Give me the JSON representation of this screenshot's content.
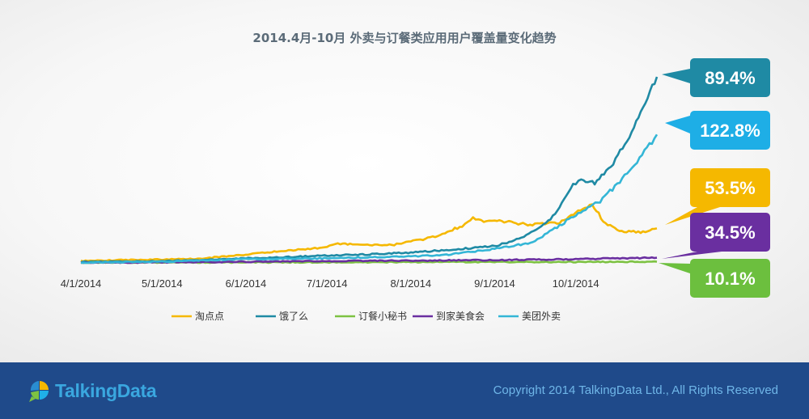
{
  "colors": {
    "taodiandian": "#f5b800",
    "eleme": "#1f8aa4",
    "dingcan": "#7dc242",
    "daojia": "#6a2fa0",
    "meituan": "#34b6d6",
    "callout_eleme": "#1f8aa4",
    "callout_meituan": "#1eaee6",
    "callout_taodiandian": "#f5b800",
    "callout_daojia": "#6a2fa0",
    "callout_dingcan": "#6cbf3e",
    "footer": "#1f4a8a"
  },
  "chart_data": {
    "type": "line",
    "title": "2014.4月-10月 外卖与订餐类应用用户覆盖量变化趋势",
    "x_ticks": [
      "4/1/2014",
      "5/1/2014",
      "6/1/2014",
      "7/1/2014",
      "8/1/2014",
      "9/1/2014",
      "10/1/2014"
    ],
    "x_range": [
      "2014-04-01",
      "2014-10-31"
    ],
    "y_range": [
      0,
      100
    ],
    "grid": false,
    "legend_position": "bottom",
    "series": [
      {
        "name": "淘点点",
        "color_key": "taodiandian",
        "callout": "53.5%",
        "points": [
          [
            "2014-04-01",
            1.0
          ],
          [
            "2014-04-15",
            1.5
          ],
          [
            "2014-05-01",
            1.8
          ],
          [
            "2014-05-15",
            2.3
          ],
          [
            "2014-06-01",
            4.5
          ],
          [
            "2014-06-15",
            6.5
          ],
          [
            "2014-07-01",
            8.5
          ],
          [
            "2014-07-05",
            10.5
          ],
          [
            "2014-07-15",
            9.5
          ],
          [
            "2014-07-25",
            9.5
          ],
          [
            "2014-08-01",
            11.5
          ],
          [
            "2014-08-10",
            14.0
          ],
          [
            "2014-08-20",
            20.0
          ],
          [
            "2014-08-24",
            24.0
          ],
          [
            "2014-08-28",
            22.0
          ],
          [
            "2014-09-01",
            23.0
          ],
          [
            "2014-09-08",
            21.5
          ],
          [
            "2014-09-15",
            20.5
          ],
          [
            "2014-09-25",
            21.5
          ],
          [
            "2014-10-01",
            27.0
          ],
          [
            "2014-10-07",
            31.5
          ],
          [
            "2014-10-12",
            21.0
          ],
          [
            "2014-10-18",
            17.0
          ],
          [
            "2014-10-25",
            16.5
          ],
          [
            "2014-10-31",
            18.5
          ]
        ]
      },
      {
        "name": "饿了么",
        "color_key": "eleme",
        "callout": "89.4%",
        "points": [
          [
            "2014-04-01",
            0.5
          ],
          [
            "2014-04-20",
            0.8
          ],
          [
            "2014-05-01",
            1.0
          ],
          [
            "2014-05-15",
            1.5
          ],
          [
            "2014-06-01",
            2.5
          ],
          [
            "2014-06-15",
            3.0
          ],
          [
            "2014-07-01",
            4.0
          ],
          [
            "2014-07-15",
            4.5
          ],
          [
            "2014-08-01",
            5.5
          ],
          [
            "2014-08-15",
            7.0
          ],
          [
            "2014-09-01",
            9.0
          ],
          [
            "2014-09-10",
            13.0
          ],
          [
            "2014-09-20",
            21.0
          ],
          [
            "2014-09-25",
            30.0
          ],
          [
            "2014-09-30",
            42.0
          ],
          [
            "2014-10-03",
            45.0
          ],
          [
            "2014-10-08",
            43.0
          ],
          [
            "2014-10-14",
            51.0
          ],
          [
            "2014-10-20",
            66.0
          ],
          [
            "2014-10-25",
            80.0
          ],
          [
            "2014-10-31",
            100.0
          ]
        ]
      },
      {
        "name": "订餐小秘书",
        "color_key": "dingcan",
        "callout": "10.1%",
        "points": [
          [
            "2014-04-01",
            0.1
          ],
          [
            "2014-05-01",
            0.2
          ],
          [
            "2014-06-01",
            0.3
          ],
          [
            "2014-07-01",
            0.3
          ],
          [
            "2014-08-01",
            0.4
          ],
          [
            "2014-09-01",
            0.5
          ],
          [
            "2014-10-01",
            0.5
          ],
          [
            "2014-10-31",
            0.6
          ]
        ]
      },
      {
        "name": "到家美食会",
        "color_key": "daojia",
        "callout": "34.5%",
        "points": [
          [
            "2014-04-01",
            0.1
          ],
          [
            "2014-05-01",
            0.3
          ],
          [
            "2014-06-01",
            0.6
          ],
          [
            "2014-07-01",
            1.0
          ],
          [
            "2014-08-01",
            1.2
          ],
          [
            "2014-09-01",
            1.5
          ],
          [
            "2014-10-01",
            2.0
          ],
          [
            "2014-10-31",
            2.8
          ]
        ]
      },
      {
        "name": "美团外卖",
        "color_key": "meituan",
        "callout": "122.8%",
        "points": [
          [
            "2014-04-01",
            0.2
          ],
          [
            "2014-05-01",
            0.6
          ],
          [
            "2014-05-20",
            1.5
          ],
          [
            "2014-06-01",
            2.0
          ],
          [
            "2014-07-01",
            2.5
          ],
          [
            "2014-08-01",
            3.5
          ],
          [
            "2014-08-15",
            4.5
          ],
          [
            "2014-09-01",
            7.5
          ],
          [
            "2014-09-15",
            11.0
          ],
          [
            "2014-09-25",
            20.0
          ],
          [
            "2014-10-01",
            26.0
          ],
          [
            "2014-10-10",
            33.0
          ],
          [
            "2014-10-20",
            48.0
          ],
          [
            "2014-10-31",
            69.0
          ]
        ]
      }
    ]
  },
  "footer": {
    "logo_text": "TalkingData",
    "logo_icon": "talkingdata-speech-bubble-icon",
    "copyright": "Copyright 2014 TalkingData Ltd., All Rights Reserved"
  }
}
